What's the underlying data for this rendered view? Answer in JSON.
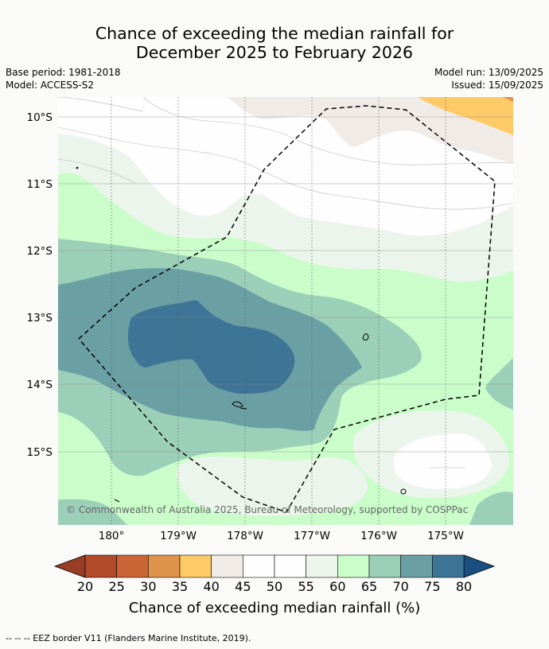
{
  "title_line1": "Chance of exceeding the median rainfall for",
  "title_line2": "December 2025 to February 2026",
  "base_period": "Base period: 1981-2018",
  "model": "Model: ACCESS-S2",
  "model_run": "Model run: 13/09/2025",
  "issued": "Issued: 15/09/2025",
  "lat_labels": [
    "10°S",
    "11°S",
    "12°S",
    "13°S",
    "14°S",
    "15°S"
  ],
  "lon_labels": [
    "180°",
    "179°W",
    "178°W",
    "177°W",
    "176°W",
    "175°W"
  ],
  "copyright": "© Commonwealth of Australia 2025, Bureau of Meteorology, supported by COSPPac",
  "colorbar": {
    "title": "Chance of exceeding median rainfall (%)",
    "tick_labels": [
      "20",
      "25",
      "30",
      "35",
      "40",
      "45",
      "50",
      "55",
      "60",
      "65",
      "70",
      "75",
      "80"
    ],
    "colors": [
      "#b24a2a",
      "#cb6435",
      "#e0934a",
      "#fcca67",
      "#f0ebe7",
      "#fdfefd",
      "#fdfefd",
      "#ebf5eb",
      "#cbfdcb",
      "#9ccfb8",
      "#6aa0a4",
      "#3e7596"
    ],
    "under_color": "#9a3d25",
    "over_color": "#1b4f82"
  },
  "footnote": "--  --  -- EEZ border V11 (Flanders Marine Institute, 2019)."
}
